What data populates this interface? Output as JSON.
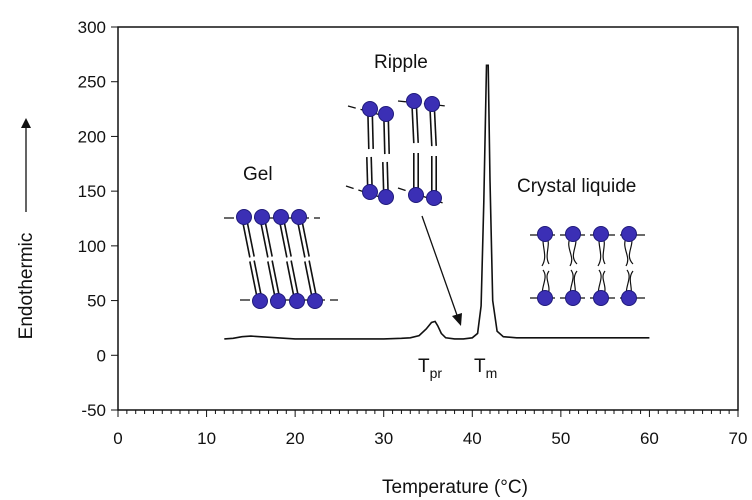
{
  "chart_data": {
    "type": "line",
    "title": "",
    "xlabel": "Temperature (°C)",
    "ylabel": "Endothermic",
    "xlim": [
      0,
      70
    ],
    "ylim": [
      -50,
      300
    ],
    "xticks": [
      0,
      10,
      20,
      30,
      40,
      50,
      60,
      70
    ],
    "yticks": [
      -50,
      0,
      50,
      100,
      150,
      200,
      250,
      300
    ],
    "grid": false,
    "legend": "none",
    "series": [
      {
        "x": [
          12,
          13,
          14,
          15,
          16,
          18,
          20,
          22,
          24,
          26,
          28,
          30,
          32,
          33,
          34,
          34.8,
          35.4,
          35.8,
          36.1,
          36.5,
          37,
          38,
          39,
          40,
          40.6,
          41,
          41.3,
          41.6,
          41.8,
          42.0,
          42.3,
          42.8,
          43.5,
          45,
          50,
          55,
          60
        ],
        "y": [
          15,
          15.5,
          17,
          17.5,
          17,
          16,
          15,
          15,
          15,
          15,
          15,
          15,
          15.5,
          16,
          18,
          24,
          30,
          31,
          27,
          20,
          16,
          15,
          15,
          16,
          20,
          45,
          140,
          265,
          265,
          160,
          50,
          22,
          17,
          16,
          16,
          16,
          16
        ]
      }
    ],
    "annotations": {
      "gel": "Gel",
      "ripple": "Ripple",
      "crystal": "Crystal liquide",
      "tpr_main": "T",
      "tpr_sub": "pr",
      "tm_main": "T",
      "tm_sub": "m"
    },
    "colors": {
      "line": "#111111",
      "head": "#3b2fb5",
      "head_edge": "#1f1a7a"
    }
  }
}
